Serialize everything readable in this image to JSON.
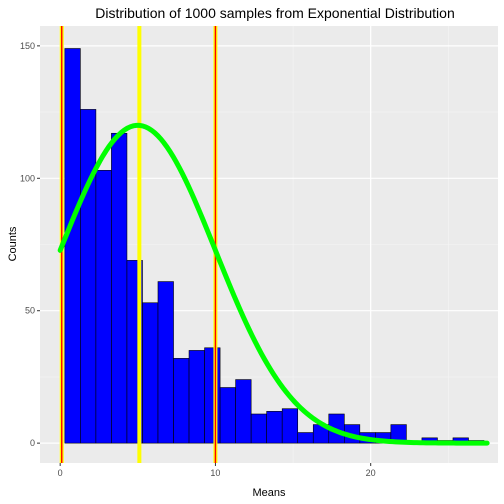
{
  "chart_data": {
    "type": "bar",
    "title": "Distribution of 1000 samples from Exponential Distribution",
    "xlabel": "Means",
    "ylabel": "Counts",
    "xlim": [
      -1.3,
      28.2
    ],
    "ylim": [
      -7.5,
      157.5
    ],
    "x_ticks": [
      0,
      10,
      20
    ],
    "y_ticks": [
      0,
      50,
      100,
      150
    ],
    "x_tick_labels": [
      "0",
      "10",
      "20"
    ],
    "y_tick_labels": [
      "0",
      "50",
      "100",
      "150"
    ],
    "grid": true,
    "legend": "none",
    "bin_width": 1,
    "bin_starts": [
      0.3,
      1.3,
      2.3,
      3.3,
      4.3,
      5.3,
      6.3,
      7.3,
      8.3,
      9.3,
      10.3,
      11.3,
      12.3,
      13.3,
      14.3,
      15.3,
      16.3,
      17.3,
      18.3,
      19.3,
      20.3,
      21.3,
      22.3,
      23.3,
      24.3,
      25.3,
      26.3
    ],
    "counts": [
      149,
      126,
      103,
      117,
      69,
      53,
      61,
      32,
      35,
      36,
      21,
      24,
      11,
      12,
      13,
      4,
      7,
      11,
      7,
      4,
      4,
      7,
      0,
      2,
      1,
      2,
      1
    ],
    "bar_fill": "#0000ff",
    "bar_outline": "#000000",
    "vertical_lines": [
      {
        "x": 0.1,
        "color": "#ff0000",
        "halo": "#ffff00"
      },
      {
        "x": 5.1,
        "color": "#ffff00",
        "halo": "#ffff00"
      },
      {
        "x": 10.0,
        "color": "#ff0000",
        "halo": "#ffff00"
      }
    ],
    "curve": {
      "color": "#00ff00",
      "mean": 5.0,
      "sd": 5.0,
      "scale": 120,
      "x_range": [
        0,
        27.5
      ]
    }
  }
}
